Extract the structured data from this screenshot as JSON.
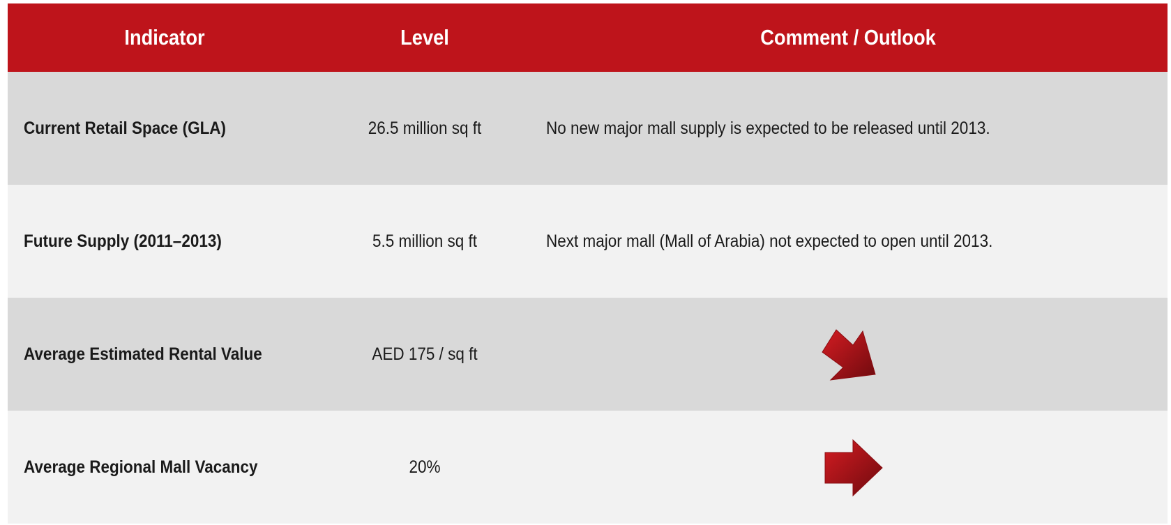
{
  "table": {
    "header": [
      "Indicator",
      "Level",
      "Comment / Outlook"
    ],
    "rows": [
      {
        "indicator": "Current Retail Space (GLA)",
        "level": "26.5 million sq ft",
        "comment": "No new major mall supply is expected to be released until 2013."
      },
      {
        "indicator": "Future Supply (2011–2013)",
        "level": "5.5 million sq ft",
        "comment": "Next major mall (Mall of Arabia) not expected to open until 2013."
      },
      {
        "indicator": "Average Estimated Rental Value",
        "level": "AED 175 / sq ft"
      },
      {
        "indicator": "Average Regional Mall Vacancy",
        "level": "20%"
      }
    ]
  }
}
